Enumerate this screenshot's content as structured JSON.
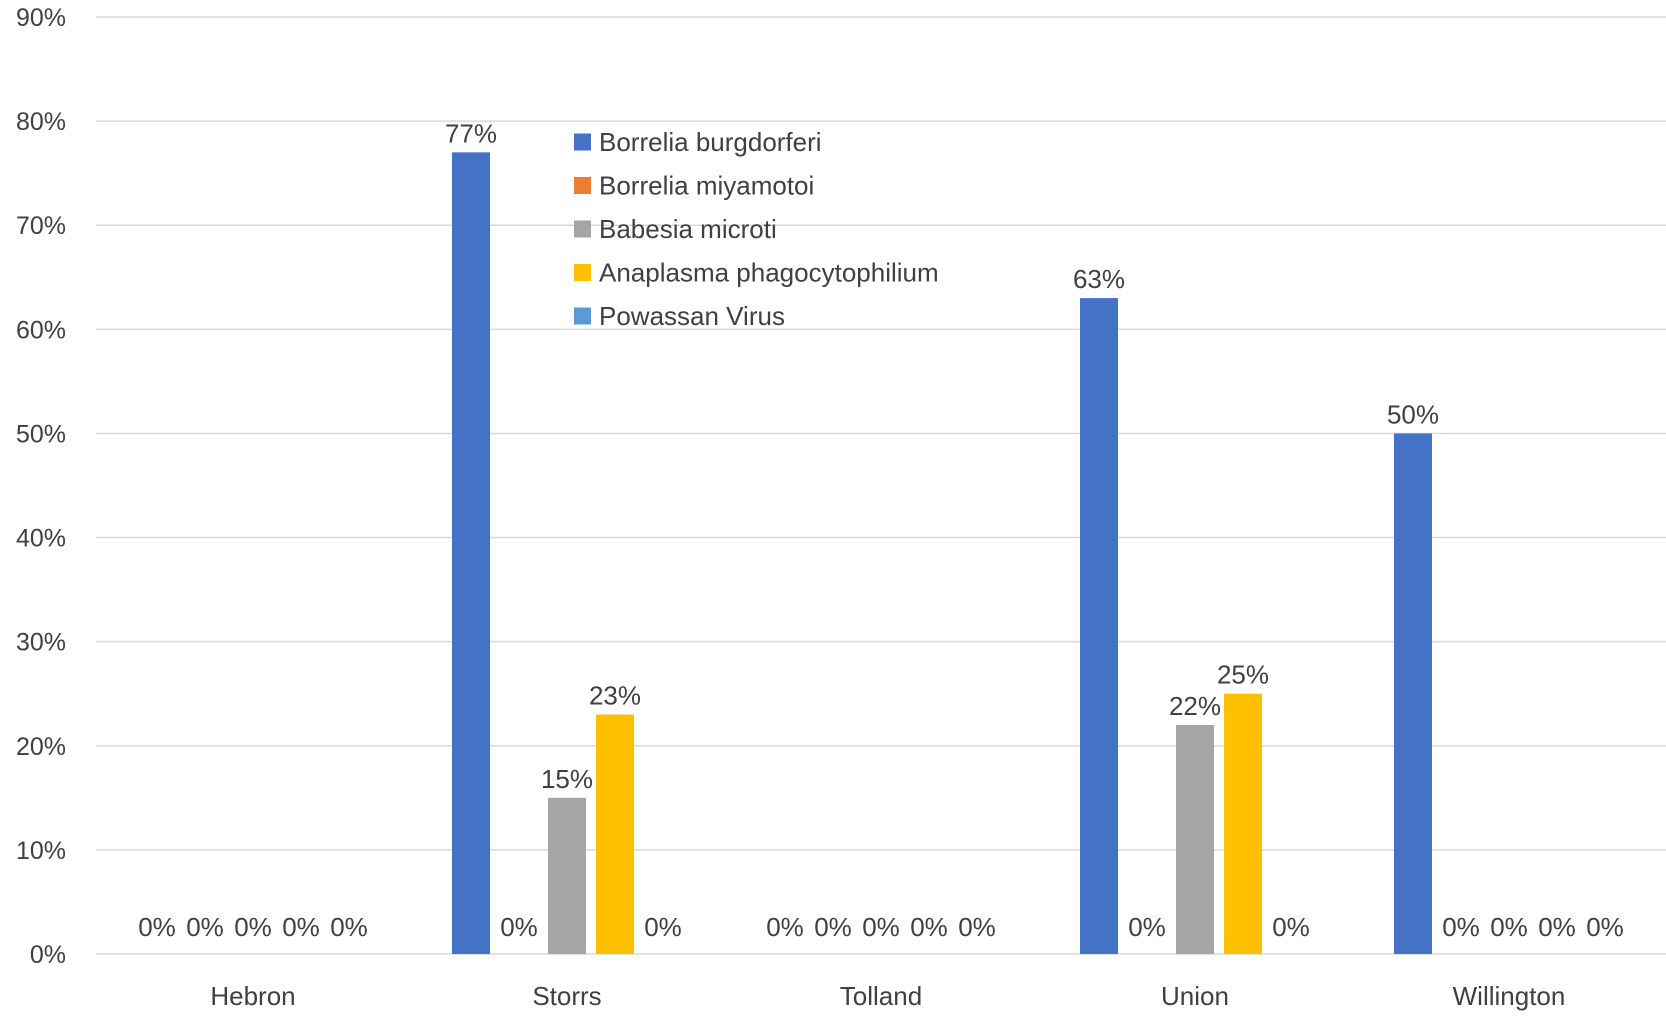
{
  "chart_data": {
    "type": "bar",
    "title": "",
    "xlabel": "",
    "ylabel": "",
    "categories": [
      "Hebron",
      "Storrs",
      "Tolland",
      "Union",
      "Willington"
    ],
    "series": [
      {
        "name": "Borrelia burgdorferi",
        "color": "#4472c4",
        "values": [
          0,
          77,
          0,
          63,
          50
        ]
      },
      {
        "name": "Borrelia miyamotoi",
        "color": "#ed7d31",
        "values": [
          0,
          0,
          0,
          0,
          0
        ]
      },
      {
        "name": "Babesia microti",
        "color": "#a5a5a5",
        "values": [
          0,
          15,
          0,
          22,
          0
        ]
      },
      {
        "name": "Anaplasma phagocytophilium",
        "color": "#ffc000",
        "values": [
          0,
          23,
          0,
          25,
          0
        ]
      },
      {
        "name": "Powassan Virus",
        "color": "#5b9bd5",
        "values": [
          0,
          0,
          0,
          0,
          0
        ]
      }
    ],
    "data_labels": [
      [
        "0%",
        "0%",
        "0%",
        "0%",
        "0%"
      ],
      [
        "77%",
        "0%",
        "15%",
        "23%",
        "0%"
      ],
      [
        "0%",
        "0%",
        "0%",
        "0%",
        "0%"
      ],
      [
        "63%",
        "0%",
        "22%",
        "25%",
        "0%"
      ],
      [
        "50%",
        "0%",
        "0%",
        "0%",
        "0%"
      ]
    ],
    "ylim": [
      0,
      90
    ],
    "yticks": [
      0,
      10,
      20,
      30,
      40,
      50,
      60,
      70,
      80,
      90
    ],
    "ytick_labels": [
      "0%",
      "10%",
      "20%",
      "30%",
      "40%",
      "50%",
      "60%",
      "70%",
      "80%",
      "90%"
    ],
    "grid": true,
    "legend_position": "top-center"
  }
}
